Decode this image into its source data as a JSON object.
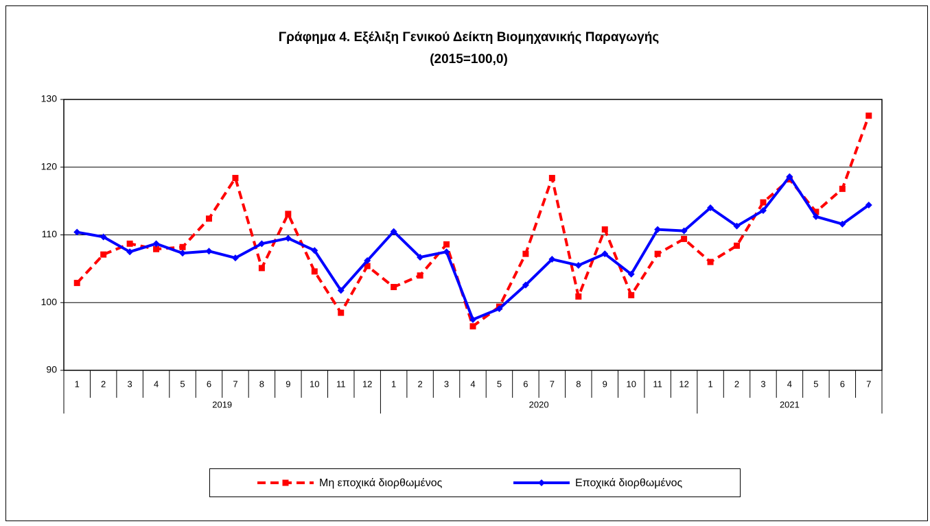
{
  "chart_data": {
    "type": "line",
    "title": "Γράφημα 4. Εξέλιξη Γενικού Δείκτη Βιομηχανικής Παραγωγής",
    "subtitle": "(2015=100,0)",
    "groups": [
      {
        "label": "2019",
        "categories": [
          "1",
          "2",
          "3",
          "4",
          "5",
          "6",
          "7",
          "8",
          "9",
          "10",
          "11",
          "12"
        ]
      },
      {
        "label": "2020",
        "categories": [
          "1",
          "2",
          "3",
          "4",
          "5",
          "6",
          "7",
          "8",
          "9",
          "10",
          "11",
          "12"
        ]
      },
      {
        "label": "2021",
        "categories": [
          "1",
          "2",
          "3",
          "4",
          "5",
          "6",
          "7"
        ]
      }
    ],
    "series": [
      {
        "name": "Μη εποχικά διορθωμένος",
        "color": "#ff0000",
        "dashed": true,
        "marker": "square",
        "values": [
          102.9,
          107.1,
          108.7,
          107.9,
          108.2,
          112.4,
          118.4,
          105.1,
          113.1,
          104.6,
          98.5,
          105.4,
          102.3,
          104.0,
          108.6,
          96.5,
          99.4,
          107.2,
          118.4,
          100.9,
          110.8,
          101.1,
          107.2,
          109.4,
          106.0,
          108.4,
          114.8,
          118.2,
          113.4,
          116.8,
          127.6
        ]
      },
      {
        "name": "Εποχικά διορθωμένος",
        "color": "#0000ff",
        "dashed": false,
        "marker": "diamond",
        "values": [
          110.4,
          109.7,
          107.5,
          108.7,
          107.3,
          107.6,
          106.6,
          108.7,
          109.5,
          107.7,
          101.8,
          106.2,
          110.5,
          106.7,
          107.5,
          97.5,
          99.1,
          102.6,
          106.4,
          105.5,
          107.2,
          104.2,
          110.8,
          110.6,
          114.0,
          111.3,
          113.6,
          118.6,
          112.7,
          111.6,
          114.4
        ]
      }
    ],
    "ylim": [
      90,
      130
    ],
    "yticks": [
      90,
      100,
      110,
      120,
      130
    ],
    "grid": true,
    "legend": "bottom"
  }
}
